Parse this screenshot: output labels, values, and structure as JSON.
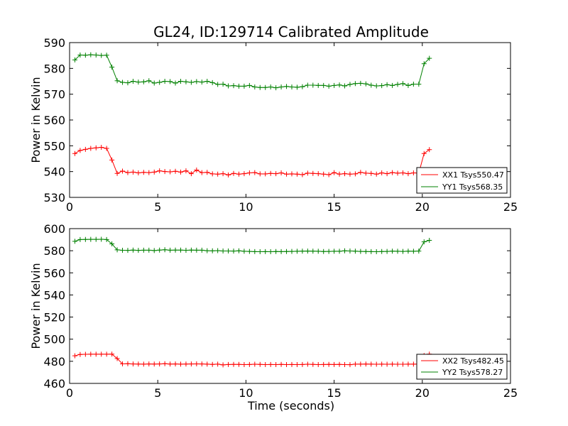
{
  "chart_data": [
    {
      "type": "line",
      "title": "GL24, ID:129714 Calibrated Amplitude",
      "xlabel": "",
      "ylabel": "Power in Kelvin",
      "xlim": [
        0,
        25
      ],
      "ylim": [
        530,
        590
      ],
      "xticks": [
        0,
        5,
        10,
        15,
        20,
        25
      ],
      "yticks": [
        530,
        540,
        550,
        560,
        570,
        580,
        590
      ],
      "grid": false,
      "legend_position": "lower-right",
      "marker": "+",
      "x": [
        0.3,
        0.6,
        0.9,
        1.2,
        1.5,
        1.8,
        2.1,
        2.4,
        2.7,
        3.0,
        3.3,
        3.6,
        3.9,
        4.2,
        4.5,
        4.8,
        5.1,
        5.4,
        5.7,
        6.0,
        6.3,
        6.6,
        6.9,
        7.2,
        7.5,
        7.8,
        8.1,
        8.4,
        8.7,
        9.0,
        9.3,
        9.6,
        9.9,
        10.2,
        10.5,
        10.8,
        11.1,
        11.4,
        11.7,
        12.0,
        12.3,
        12.6,
        12.9,
        13.2,
        13.5,
        13.8,
        14.1,
        14.4,
        14.7,
        15.0,
        15.3,
        15.6,
        15.9,
        16.2,
        16.5,
        16.8,
        17.1,
        17.4,
        17.7,
        18.0,
        18.3,
        18.6,
        18.9,
        19.2,
        19.5,
        19.8,
        20.1,
        20.4
      ],
      "series": [
        {
          "name": "XX1 Tsys550.47",
          "color": "#ff0000",
          "values": [
            547.0,
            548.2,
            548.6,
            549.0,
            549.2,
            549.4,
            549.0,
            544.5,
            539.3,
            540.2,
            539.6,
            539.8,
            539.5,
            539.7,
            539.6,
            539.8,
            540.3,
            540.0,
            539.9,
            540.1,
            539.8,
            540.3,
            539.2,
            540.6,
            539.6,
            539.7,
            539.1,
            539.0,
            539.2,
            538.7,
            539.3,
            539.0,
            539.2,
            539.5,
            539.6,
            539.1,
            539.1,
            539.3,
            539.2,
            539.5,
            539.0,
            539.1,
            539.0,
            538.8,
            539.4,
            539.3,
            539.2,
            539.0,
            538.8,
            539.6,
            539.0,
            539.2,
            539.0,
            539.1,
            539.7,
            539.4,
            539.3,
            539.0,
            539.5,
            539.2,
            539.6,
            539.4,
            539.5,
            539.2,
            539.5,
            539.4,
            547.0,
            548.5
          ]
        },
        {
          "name": "YY1 Tsys568.35",
          "color": "#008000",
          "values": [
            583.3,
            585.2,
            585.1,
            585.3,
            585.2,
            585.0,
            585.1,
            580.5,
            575.2,
            574.6,
            574.4,
            575.0,
            574.7,
            574.8,
            575.2,
            574.3,
            574.6,
            575.0,
            574.9,
            574.3,
            575.0,
            574.8,
            574.6,
            574.9,
            574.7,
            575.0,
            574.5,
            573.8,
            573.9,
            573.2,
            573.3,
            573.1,
            573.1,
            573.4,
            572.8,
            572.6,
            572.6,
            572.8,
            572.5,
            572.8,
            573.0,
            572.8,
            572.7,
            572.9,
            573.5,
            573.5,
            573.4,
            573.4,
            573.1,
            573.4,
            573.6,
            573.2,
            573.8,
            574.1,
            574.2,
            574.0,
            573.5,
            573.2,
            573.3,
            573.7,
            573.4,
            573.8,
            574.1,
            573.4,
            573.9,
            573.9,
            581.8,
            583.9
          ]
        }
      ]
    },
    {
      "type": "line",
      "title": "",
      "xlabel": "Time (seconds)",
      "ylabel": "Power in Kelvin",
      "xlim": [
        0,
        25
      ],
      "ylim": [
        460,
        600
      ],
      "xticks": [
        0,
        5,
        10,
        15,
        20,
        25
      ],
      "yticks": [
        460,
        480,
        500,
        520,
        540,
        560,
        580,
        600
      ],
      "grid": false,
      "legend_position": "lower-right",
      "marker": "+",
      "x": [
        0.3,
        0.6,
        0.9,
        1.2,
        1.5,
        1.8,
        2.1,
        2.4,
        2.7,
        3.0,
        3.3,
        3.6,
        3.9,
        4.2,
        4.5,
        4.8,
        5.1,
        5.4,
        5.7,
        6.0,
        6.3,
        6.6,
        6.9,
        7.2,
        7.5,
        7.8,
        8.1,
        8.4,
        8.7,
        9.0,
        9.3,
        9.6,
        9.9,
        10.2,
        10.5,
        10.8,
        11.1,
        11.4,
        11.7,
        12.0,
        12.3,
        12.6,
        12.9,
        13.2,
        13.5,
        13.8,
        14.1,
        14.4,
        14.7,
        15.0,
        15.3,
        15.6,
        15.9,
        16.2,
        16.5,
        16.8,
        17.1,
        17.4,
        17.7,
        18.0,
        18.3,
        18.6,
        18.9,
        19.2,
        19.5,
        19.8,
        20.1,
        20.4
      ],
      "series": [
        {
          "name": "XX2 Tsys482.45",
          "color": "#ff0000",
          "values": [
            485.0,
            486.2,
            486.3,
            486.4,
            486.4,
            486.4,
            486.4,
            486.5,
            482.5,
            477.7,
            477.8,
            477.6,
            477.5,
            477.4,
            477.6,
            477.5,
            477.6,
            477.8,
            477.5,
            477.6,
            477.4,
            477.5,
            477.6,
            477.7,
            477.6,
            477.4,
            477.2,
            477.4,
            476.8,
            477.1,
            477.2,
            477.2,
            477.0,
            477.1,
            477.3,
            477.2,
            477.0,
            477.1,
            477.0,
            477.2,
            477.0,
            477.1,
            477.0,
            477.1,
            477.3,
            477.2,
            477.0,
            477.1,
            477.2,
            477.1,
            477.2,
            477.0,
            476.9,
            477.4,
            477.4,
            477.5,
            477.4,
            477.3,
            477.4,
            477.3,
            477.4,
            477.3,
            477.3,
            477.4,
            477.4,
            477.5,
            485.2,
            486.5
          ]
        },
        {
          "name": "YY2 Tsys578.27",
          "color": "#008000",
          "values": [
            588.5,
            590.1,
            590.2,
            590.3,
            590.3,
            590.4,
            590.1,
            586.2,
            580.8,
            580.4,
            580.3,
            580.6,
            580.3,
            580.5,
            580.5,
            580.2,
            580.6,
            580.9,
            580.5,
            580.6,
            580.6,
            580.4,
            580.6,
            580.5,
            580.5,
            580.0,
            579.9,
            580.1,
            579.8,
            579.8,
            579.7,
            579.9,
            579.5,
            579.4,
            579.2,
            579.1,
            579.2,
            579.1,
            579.3,
            579.2,
            579.3,
            579.4,
            579.5,
            579.6,
            579.7,
            579.6,
            579.5,
            579.3,
            579.4,
            579.5,
            579.5,
            579.9,
            579.8,
            579.6,
            579.4,
            579.3,
            579.2,
            579.1,
            579.3,
            579.4,
            579.6,
            579.5,
            579.4,
            579.6,
            579.5,
            579.7,
            588.0,
            589.4
          ]
        }
      ]
    }
  ]
}
